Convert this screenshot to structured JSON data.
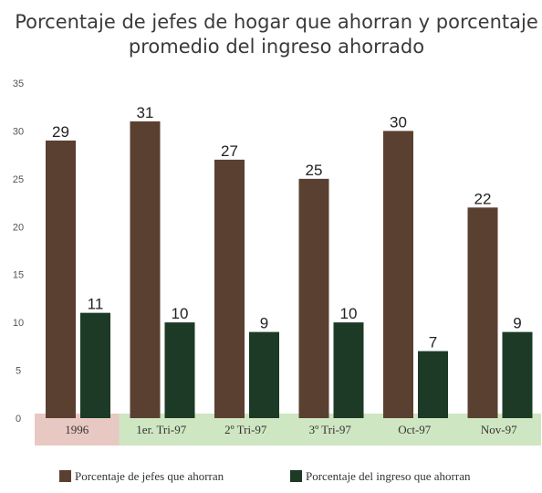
{
  "chart_data": {
    "type": "bar",
    "title_lines": [
      "Porcentaje de jefes de hogar que ahorran y porcentaje",
      "promedio del ingreso ahorrado"
    ],
    "categories": [
      "1996",
      "1er. Tri-97",
      "2º Tri-97",
      "3º Tri-97",
      "Oct-97",
      "Nov-97"
    ],
    "series": [
      {
        "name": "Porcentaje de jefes que ahorran",
        "values": [
          29,
          31,
          27,
          25,
          30,
          22
        ],
        "color": "#5a4030"
      },
      {
        "name": "Porcentaje del ingreso que ahorran",
        "values": [
          11,
          10,
          9,
          10,
          7,
          9
        ],
        "color": "#1d3a26"
      }
    ],
    "category_band_colors": [
      "#e8c8c2",
      "#cfe6c2",
      "#cfe6c2",
      "#cfe6c2",
      "#cfe6c2",
      "#cfe6c2"
    ],
    "yticks": [
      "0",
      "5",
      "10",
      "15",
      "20",
      "25",
      "30",
      "35"
    ],
    "ylim": [
      0,
      35
    ],
    "grid": false,
    "legend_position": "bottom"
  }
}
